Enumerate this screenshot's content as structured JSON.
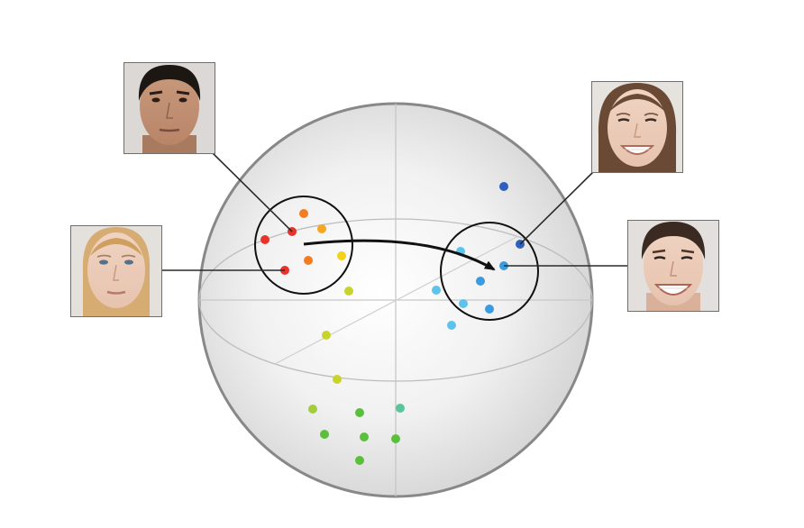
{
  "diagram": {
    "colors": {
      "red": "#e8322a",
      "orange": "#f47c20",
      "amber": "#f5a623",
      "yellow": "#f2d21a",
      "yellow_green": "#c8d42c",
      "light_green": "#a3cc3a",
      "green": "#5cbf3c",
      "teal": "#5cc49a",
      "light_blue": "#5ec3ec",
      "blue": "#3b9be0",
      "dark_blue": "#2f5fbf"
    },
    "faces": [
      {
        "name": "face-photo-neutral-male",
        "expression": "neutral"
      },
      {
        "name": "face-photo-neutral-female",
        "expression": "neutral"
      },
      {
        "name": "face-photo-smiling-female",
        "expression": "smiling"
      },
      {
        "name": "face-photo-smiling-male",
        "expression": "smiling"
      }
    ],
    "arrow": {
      "from": "neutral-cluster",
      "to": "smiling-cluster"
    }
  }
}
